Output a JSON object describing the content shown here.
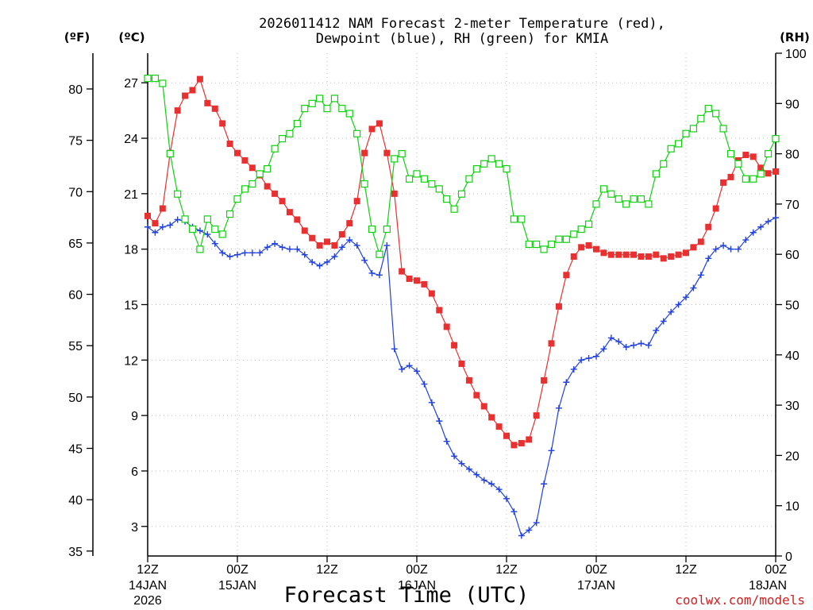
{
  "chart_data": {
    "type": "line",
    "title_line1": "2026011412 NAM Forecast 2-meter Temperature (red),",
    "title_line2": "Dewpoint (blue), RH (green) for KMIA",
    "units": {
      "fahrenheit": "(ºF)",
      "celsius": "(ºC)",
      "rh": "(RH)"
    },
    "xlabel": "Forecast Time (UTC)",
    "credit": "coolwx.com/models",
    "xlim_hours": [
      0,
      84
    ],
    "x_ticks": [
      {
        "hour": 0,
        "l1": "12Z",
        "l2": "14JAN",
        "l3": "2026"
      },
      {
        "hour": 12,
        "l1": "00Z",
        "l2": "15JAN",
        "l3": ""
      },
      {
        "hour": 24,
        "l1": "12Z",
        "l2": "",
        "l3": ""
      },
      {
        "hour": 36,
        "l1": "00Z",
        "l2": "16JAN",
        "l3": ""
      },
      {
        "hour": 48,
        "l1": "12Z",
        "l2": "",
        "l3": ""
      },
      {
        "hour": 60,
        "l1": "00Z",
        "l2": "17JAN",
        "l3": ""
      },
      {
        "hour": 72,
        "l1": "12Z",
        "l2": "",
        "l3": ""
      },
      {
        "hour": 84,
        "l1": "00Z",
        "l2": "18JAN",
        "l3": ""
      }
    ],
    "celsius_ticks": [
      3,
      6,
      9,
      12,
      15,
      18,
      21,
      24,
      27
    ],
    "fahrenheit_ticks": [
      35,
      40,
      45,
      50,
      55,
      60,
      65,
      70,
      75,
      80
    ],
    "rh_ticks": [
      0,
      10,
      20,
      30,
      40,
      50,
      60,
      70,
      80,
      90,
      100
    ],
    "celsius_range": [
      1.4,
      28.6
    ],
    "rh_range": [
      0,
      100
    ],
    "colors": {
      "temperature": "#e83030",
      "dewpoint": "#2040e0",
      "rh": "#10d010",
      "grid": "#bdbdbd"
    },
    "hours": [
      0,
      1,
      2,
      3,
      4,
      5,
      6,
      7,
      8,
      9,
      10,
      11,
      12,
      13,
      14,
      15,
      16,
      17,
      18,
      19,
      20,
      21,
      22,
      23,
      24,
      25,
      26,
      27,
      28,
      29,
      30,
      31,
      32,
      33,
      34,
      35,
      36,
      37,
      38,
      39,
      40,
      41,
      42,
      43,
      44,
      45,
      46,
      47,
      48,
      49,
      50,
      51,
      52,
      53,
      54,
      55,
      56,
      57,
      58,
      59,
      60,
      61,
      62,
      63,
      64,
      65,
      66,
      67,
      68,
      69,
      70,
      71,
      72,
      73,
      74,
      75,
      76,
      77,
      78,
      79,
      80,
      81,
      82,
      83,
      84
    ],
    "series": [
      {
        "name": "Temperature (°C)",
        "axis": "celsius",
        "marker": "square-filled",
        "values": [
          19.8,
          19.4,
          20.2,
          23.2,
          25.5,
          26.3,
          26.6,
          27.2,
          25.9,
          25.6,
          24.8,
          23.7,
          23.2,
          22.8,
          22.4,
          22.0,
          21.4,
          21.0,
          20.6,
          20.0,
          19.6,
          19.0,
          18.6,
          18.2,
          18.4,
          18.2,
          18.8,
          19.4,
          20.6,
          23.2,
          24.5,
          24.8,
          23.2,
          21.0,
          16.8,
          16.4,
          16.3,
          16.1,
          15.6,
          14.7,
          13.8,
          12.8,
          11.8,
          10.9,
          10.1,
          9.5,
          8.9,
          8.4,
          7.9,
          7.4,
          7.5,
          7.7,
          9.0,
          10.9,
          12.9,
          14.9,
          16.6,
          17.6,
          18.1,
          18.2,
          18.0,
          17.8,
          17.7,
          17.7,
          17.7,
          17.7,
          17.6,
          17.6,
          17.7,
          17.5,
          17.6,
          17.7,
          17.8,
          18.1,
          18.4,
          19.2,
          20.2,
          21.6,
          21.9,
          22.8,
          23.1,
          23.0,
          22.4,
          22.1,
          22.2
        ]
      },
      {
        "name": "Dewpoint (°C)",
        "axis": "celsius",
        "marker": "plus",
        "values": [
          19.2,
          18.9,
          19.2,
          19.3,
          19.6,
          19.5,
          19.2,
          19.0,
          18.8,
          18.3,
          17.8,
          17.6,
          17.7,
          17.8,
          17.8,
          17.8,
          18.1,
          18.3,
          18.1,
          18.0,
          18.0,
          17.7,
          17.3,
          17.1,
          17.3,
          17.6,
          18.1,
          18.5,
          18.2,
          17.4,
          16.7,
          16.6,
          18.2,
          12.6,
          11.5,
          11.7,
          11.4,
          10.7,
          9.7,
          8.7,
          7.6,
          6.8,
          6.4,
          6.1,
          5.8,
          5.5,
          5.3,
          5.0,
          4.5,
          3.8,
          2.5,
          2.8,
          3.2,
          5.3,
          7.1,
          9.4,
          10.8,
          11.5,
          12.0,
          12.1,
          12.2,
          12.6,
          13.2,
          13.0,
          12.7,
          12.8,
          12.9,
          12.8,
          13.6,
          14.1,
          14.6,
          15.0,
          15.4,
          15.9,
          16.6,
          17.5,
          18.0,
          18.2,
          18.0,
          18.0,
          18.5,
          18.9,
          19.2,
          19.5,
          19.7
        ]
      },
      {
        "name": "RH (%)",
        "axis": "rh",
        "marker": "square-open",
        "values": [
          95,
          95,
          94,
          80,
          72,
          67,
          65,
          61,
          67,
          65,
          64,
          68,
          71,
          73,
          74,
          76,
          77,
          81,
          83,
          84,
          86,
          89,
          90,
          91,
          89,
          91,
          89,
          88,
          84,
          74,
          65,
          60,
          65,
          79,
          80,
          75,
          76,
          75,
          74,
          73,
          71,
          69,
          72,
          75,
          77,
          78,
          79,
          78,
          77,
          67,
          67,
          62,
          62,
          61,
          62,
          63,
          63,
          64,
          65,
          66,
          70,
          73,
          72,
          71,
          70,
          71,
          71,
          70,
          76,
          78,
          81,
          82,
          84,
          85,
          87,
          89,
          88,
          85,
          80,
          78,
          75,
          75,
          76,
          80,
          83
        ]
      }
    ]
  }
}
